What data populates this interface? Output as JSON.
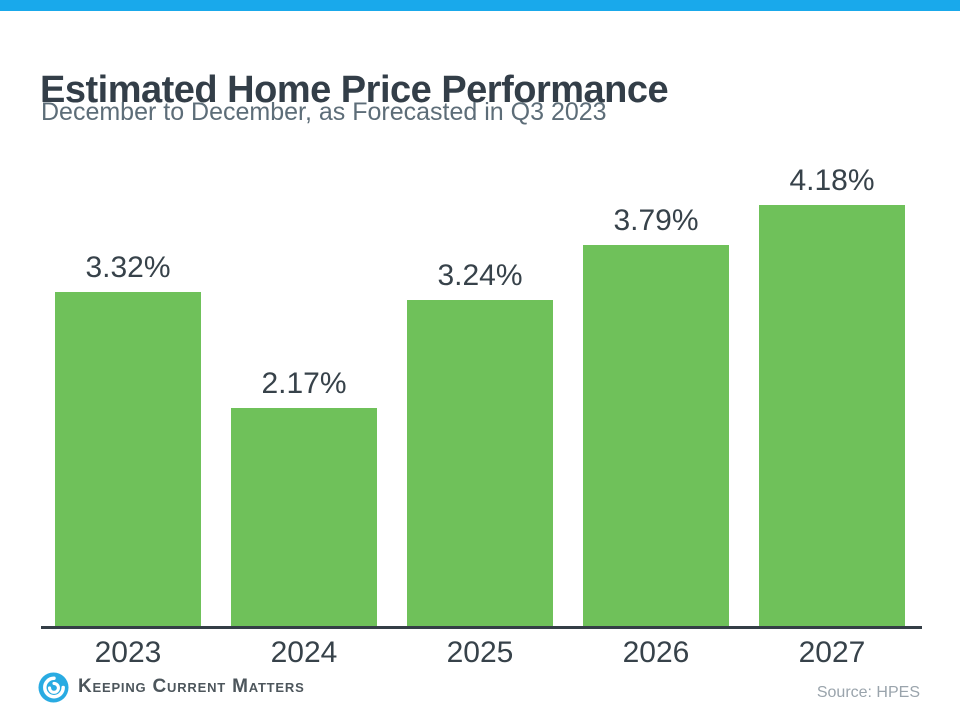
{
  "page": {
    "background_color": "#FFFFFF",
    "accent_bar_color": "#19A9EB"
  },
  "header": {
    "title": "Estimated Home Price Performance",
    "subtitle": "December to December, as Forecasted in Q3 2023",
    "title_color": "#333E48",
    "subtitle_color": "#5D6D78"
  },
  "chart_data": {
    "type": "bar",
    "title": "Estimated Home Price Performance",
    "subtitle": "December to December, as Forecasted in Q3 2023",
    "categories": [
      "2023",
      "2024",
      "2025",
      "2026",
      "2027"
    ],
    "values": [
      3.32,
      2.17,
      3.24,
      3.79,
      4.18
    ],
    "value_labels": [
      "3.32%",
      "2.17%",
      "3.24%",
      "3.79%",
      "4.18%"
    ],
    "unit": "%",
    "xlabel": "",
    "ylabel": "",
    "ylim": [
      0,
      4.62
    ],
    "grid": false,
    "legend": false,
    "bar_color": "#6FC15A",
    "value_label_color": "#37424A",
    "category_label_color": "#37424A",
    "axis_line_color": "#343E46"
  },
  "footer": {
    "logo": {
      "icon": "kcm-swirl-icon",
      "icon_color": "#29ABE2",
      "text": "Keeping Current Matters",
      "text_color": "#4D565C"
    },
    "source_text": "Source: HPES",
    "source_color": "#9AA4AC"
  }
}
